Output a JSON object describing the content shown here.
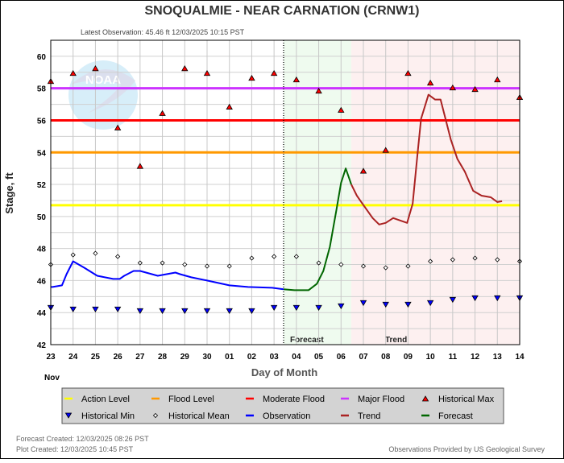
{
  "title": "SNOQUALMIE - NEAR CARNATION  (CRNW1)",
  "latest_observation": "Latest Observation: 45.46 ft 12/03/2025 10:15 PST",
  "logo_text": "NOAA",
  "footer": {
    "forecast_created": "Forecast Created: 12/03/2025 08:26 PST",
    "plot_created": "Plot Created: 12/03/2025 10:45 PST",
    "provider": "Observations Provided by US Geological Survey"
  },
  "chart_data": {
    "type": "line",
    "title": "SNOQUALMIE - NEAR CARNATION  (CRNW1)",
    "xlabel": "Day of Month",
    "ylabel": "Stage, ft",
    "month_label": "Nov",
    "ylim": [
      42,
      61
    ],
    "yticks": [
      42,
      44,
      46,
      48,
      50,
      52,
      54,
      56,
      58,
      60
    ],
    "grid": true,
    "x_tick_labels": [
      "23",
      "24",
      "25",
      "26",
      "27",
      "28",
      "29",
      "30",
      "01",
      "02",
      "03",
      "04",
      "05",
      "06",
      "07",
      "08",
      "09",
      "10",
      "11",
      "12",
      "13",
      "14"
    ],
    "x_tick_dates": [
      "11/23",
      "11/24",
      "11/25",
      "11/26",
      "11/27",
      "11/28",
      "11/29",
      "11/30",
      "12/01",
      "12/02",
      "12/03",
      "12/04",
      "12/05",
      "12/06",
      "12/07",
      "12/08",
      "12/09",
      "12/10",
      "12/11",
      "12/12",
      "12/13",
      "12/14"
    ],
    "regions": [
      {
        "name": "Forecast",
        "start": "12/03 10:15",
        "end": "12/06 11:00",
        "color": "#effbef"
      },
      {
        "name": "Trend",
        "start": "12/06 11:00",
        "end": "12/14 00:00",
        "color": "#fdf0f0"
      }
    ],
    "thresholds": [
      {
        "name": "Action Level",
        "value": 50.7,
        "color": "#ffff00"
      },
      {
        "name": "Flood Level",
        "value": 54,
        "color": "#ff9900"
      },
      {
        "name": "Moderate Flood",
        "value": 56,
        "color": "#ff0000"
      },
      {
        "name": "Major Flood",
        "value": 58,
        "color": "#cc33ff"
      }
    ],
    "historical_max": {
      "name": "Historical Max",
      "color": "#ff0000",
      "values": [
        58.4,
        58.9,
        59.2,
        55.5,
        53.1,
        56.4,
        59.2,
        58.9,
        56.8,
        58.6,
        58.9,
        58.5,
        57.8,
        56.6,
        52.8,
        54.1,
        58.9,
        58.3,
        58.0,
        57.9,
        58.5,
        57.4
      ]
    },
    "historical_mean": {
      "name": "Historical Mean",
      "values": [
        47.0,
        47.6,
        47.7,
        47.5,
        47.1,
        47.1,
        47.0,
        46.9,
        46.9,
        47.4,
        47.5,
        47.5,
        47.1,
        47.0,
        46.9,
        46.8,
        46.9,
        47.2,
        47.3,
        47.4,
        47.3,
        47.2
      ]
    },
    "historical_min": {
      "name": "Historical Min",
      "color": "#0000ff",
      "values": [
        44.3,
        44.2,
        44.2,
        44.2,
        44.1,
        44.1,
        44.1,
        44.1,
        44.1,
        44.1,
        44.3,
        44.3,
        44.3,
        44.4,
        44.6,
        44.5,
        44.5,
        44.6,
        44.8,
        44.9,
        44.9,
        44.9
      ]
    },
    "series": [
      {
        "name": "Observation",
        "color": "#0000ff",
        "points": [
          [
            "11/23 00:00",
            45.6
          ],
          [
            "11/23 02:00",
            45.6
          ],
          [
            "11/23 12:00",
            45.7
          ],
          [
            "11/23 17:00",
            46.4
          ],
          [
            "11/24 00:00",
            47.2
          ],
          [
            "11/24 12:00",
            46.8
          ],
          [
            "11/25 02:00",
            46.3
          ],
          [
            "11/25 19:00",
            46.1
          ],
          [
            "11/26 02:00",
            46.1
          ],
          [
            "11/26 07:00",
            46.3
          ],
          [
            "11/26 17:00",
            46.6
          ],
          [
            "11/27 00:00",
            46.6
          ],
          [
            "11/27 19:00",
            46.3
          ],
          [
            "11/28 14:00",
            46.5
          ],
          [
            "11/28 19:00",
            46.4
          ],
          [
            "11/29 07:00",
            46.2
          ],
          [
            "11/30 00:00",
            46.0
          ],
          [
            "12/01 00:00",
            45.7
          ],
          [
            "12/01 20:00",
            45.6
          ],
          [
            "12/02 22:00",
            45.55
          ],
          [
            "12/03 10:15",
            45.46
          ]
        ]
      },
      {
        "name": "Forecast",
        "color": "#006600",
        "points": [
          [
            "12/03 10:15",
            45.46
          ],
          [
            "12/03 22:00",
            45.4
          ],
          [
            "12/04 13:00",
            45.4
          ],
          [
            "12/04 22:00",
            45.8
          ],
          [
            "12/05 05:00",
            46.6
          ],
          [
            "12/05 12:00",
            48.1
          ],
          [
            "12/05 19:00",
            50.4
          ],
          [
            "12/06 00:00",
            52.1
          ],
          [
            "12/06 05:00",
            53.0
          ],
          [
            "12/06 11:00",
            52.0
          ]
        ]
      },
      {
        "name": "Trend",
        "color": "#aa2222",
        "points": [
          [
            "12/06 11:00",
            52.0
          ],
          [
            "12/06 17:00",
            51.3
          ],
          [
            "12/06 23:00",
            50.8
          ],
          [
            "12/07 10:00",
            49.9
          ],
          [
            "12/07 17:00",
            49.5
          ],
          [
            "12/08 00:00",
            49.6
          ],
          [
            "12/08 08:00",
            49.9
          ],
          [
            "12/08 23:00",
            49.6
          ],
          [
            "12/09 05:00",
            50.8
          ],
          [
            "12/09 10:00",
            53.8
          ],
          [
            "12/09 14:00",
            56.1
          ],
          [
            "12/09 22:00",
            57.6
          ],
          [
            "12/10 05:00",
            57.3
          ],
          [
            "12/10 11:00",
            57.3
          ],
          [
            "12/10 22:00",
            54.8
          ],
          [
            "12/11 05:00",
            53.6
          ],
          [
            "12/11 13:00",
            52.8
          ],
          [
            "12/11 22:00",
            51.6
          ],
          [
            "12/12 07:00",
            51.3
          ],
          [
            "12/12 17:00",
            51.2
          ],
          [
            "12/13 00:00",
            50.9
          ],
          [
            "12/13 05:00",
            50.95
          ]
        ]
      }
    ],
    "legend": {
      "placement": "bottom",
      "items": [
        {
          "label": "Action Level",
          "symbol": "line",
          "color": "#ffff00"
        },
        {
          "label": "Flood Level",
          "symbol": "line",
          "color": "#ff9900"
        },
        {
          "label": "Moderate Flood",
          "symbol": "line",
          "color": "#ff0000"
        },
        {
          "label": "Major Flood",
          "symbol": "line",
          "color": "#cc33ff"
        },
        {
          "label": "Historical Max",
          "symbol": "triangle-up",
          "color": "#ff0000"
        },
        {
          "label": "Historical Min",
          "symbol": "triangle-down",
          "color": "#0000ff"
        },
        {
          "label": "Historical Mean",
          "symbol": "diamond",
          "color": "#000000"
        },
        {
          "label": "Observation",
          "symbol": "line",
          "color": "#0000ff"
        },
        {
          "label": "Trend",
          "symbol": "line",
          "color": "#aa2222"
        },
        {
          "label": "Forecast",
          "symbol": "line",
          "color": "#006600"
        }
      ]
    }
  }
}
